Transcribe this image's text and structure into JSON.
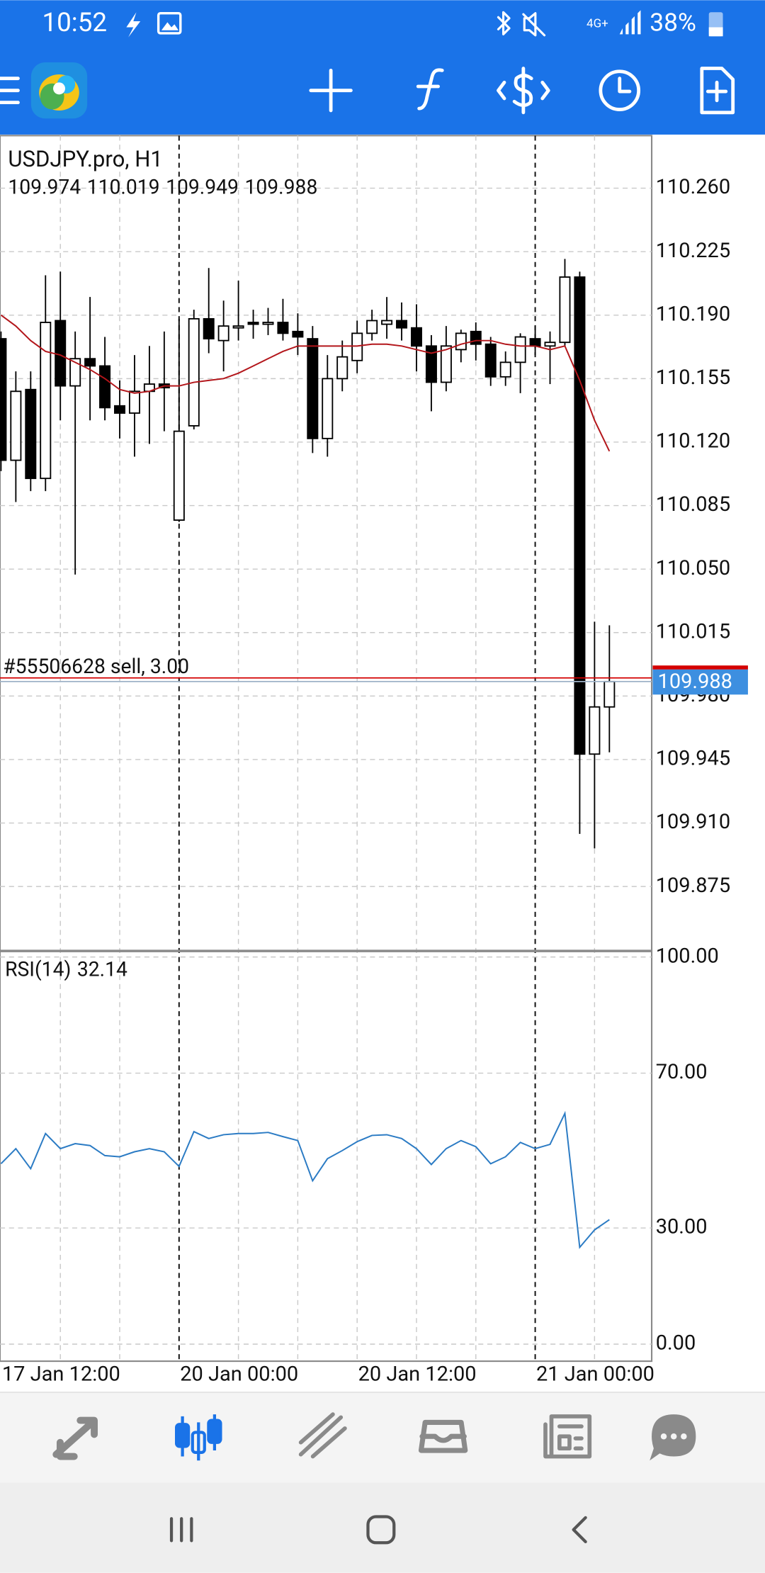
{
  "status_bar": {
    "time": "10:52",
    "network": "4G+",
    "battery": "38%"
  },
  "chart_data": [
    {
      "type": "candlestick",
      "title": "USDJPY.pro, H1",
      "categories": [
        "17 Jan 12:00",
        null,
        null,
        null,
        null,
        null,
        null,
        null,
        null,
        null,
        null,
        null,
        "20 Jan 00:00",
        null,
        null,
        null,
        null,
        null,
        null,
        null,
        null,
        null,
        null,
        null,
        "20 Jan 12:00",
        null,
        null,
        null,
        null,
        null,
        null,
        null,
        null,
        null,
        null,
        null,
        "21 Jan 00:00",
        null,
        null,
        null,
        null,
        null
      ],
      "candles": {
        "open": [
          110.177,
          110.11,
          110.149,
          110.1,
          110.187,
          110.151,
          110.166,
          110.162,
          110.14,
          110.136,
          110.148,
          110.152,
          110.077,
          110.129,
          110.188,
          110.176,
          110.183,
          110.186,
          110.185,
          110.186,
          110.181,
          110.177,
          110.122,
          110.155,
          110.165,
          110.18,
          110.185,
          110.187,
          110.183,
          110.173,
          110.153,
          110.171,
          110.181,
          110.174,
          110.156,
          110.164,
          110.177,
          110.173,
          110.175,
          110.211,
          109.948,
          109.974
        ],
        "high": [
          110.181,
          110.159,
          110.159,
          110.212,
          110.214,
          110.181,
          110.2,
          110.178,
          110.154,
          110.168,
          110.173,
          110.181,
          110.188,
          110.193,
          110.216,
          110.198,
          110.209,
          110.193,
          110.194,
          110.199,
          110.191,
          110.184,
          110.168,
          110.176,
          110.187,
          110.193,
          110.2,
          110.197,
          110.196,
          110.179,
          110.184,
          110.182,
          110.186,
          110.178,
          110.17,
          110.18,
          110.184,
          110.181,
          110.221,
          110.214,
          110.021,
          110.019
        ],
        "low": [
          110.104,
          110.087,
          110.093,
          110.093,
          110.132,
          110.047,
          110.132,
          110.132,
          110.122,
          110.112,
          110.119,
          110.126,
          110.076,
          110.127,
          110.169,
          110.159,
          110.176,
          110.177,
          110.179,
          110.176,
          110.168,
          110.114,
          110.112,
          110.148,
          110.158,
          110.176,
          110.177,
          110.176,
          110.159,
          110.137,
          110.148,
          110.164,
          110.165,
          110.151,
          110.151,
          110.147,
          110.168,
          110.152,
          110.173,
          109.904,
          109.896,
          109.949
        ],
        "close": [
          110.11,
          110.148,
          110.1,
          110.186,
          110.151,
          110.166,
          110.162,
          110.139,
          110.136,
          110.148,
          110.152,
          110.15,
          110.126,
          110.188,
          110.177,
          110.184,
          110.184,
          110.185,
          110.186,
          110.18,
          110.178,
          110.122,
          110.155,
          110.167,
          110.18,
          110.187,
          110.187,
          110.183,
          110.173,
          110.153,
          110.173,
          110.18,
          110.174,
          110.156,
          110.164,
          110.178,
          110.173,
          110.175,
          110.211,
          109.948,
          109.974,
          109.988
        ]
      },
      "overlays": [
        {
          "type": "line",
          "color": "#b3161b",
          "values": [
            110.19,
            110.184,
            110.176,
            110.17,
            110.168,
            110.164,
            110.16,
            110.155,
            110.149,
            110.147,
            110.148,
            110.151,
            110.151,
            110.153,
            110.154,
            110.155,
            110.158,
            110.162,
            110.166,
            110.17,
            110.173,
            110.173,
            110.173,
            110.173,
            110.173,
            110.174,
            110.174,
            110.173,
            110.171,
            110.169,
            110.171,
            110.174,
            110.176,
            110.176,
            110.174,
            110.173,
            110.173,
            110.171,
            110.173,
            110.154,
            110.132,
            110.115
          ]
        }
      ],
      "annotations": [
        {
          "text": "#55506628 sell, 3.00",
          "value": 109.99,
          "color": "#d40000"
        }
      ],
      "ylim": [
        109.84,
        110.289
      ],
      "yticks": [
        {
          "value": 110.26,
          "label": "110.260"
        },
        {
          "value": 110.225,
          "label": "110.225"
        },
        {
          "value": 110.19,
          "label": "110.190"
        },
        {
          "value": 110.155,
          "label": "110.155"
        },
        {
          "value": 110.12,
          "label": "110.120"
        },
        {
          "value": 110.085,
          "label": "110.085"
        },
        {
          "value": 110.05,
          "label": "110.050"
        },
        {
          "value": 110.015,
          "label": "110.015"
        },
        {
          "value": 109.98,
          "label": "109.980"
        },
        {
          "value": 109.945,
          "label": "109.945"
        },
        {
          "value": 109.91,
          "label": "109.910"
        },
        {
          "value": 109.875,
          "label": "109.875"
        }
      ],
      "grid": true
    },
    {
      "type": "line",
      "series": [
        {
          "name": "RSI(14)",
          "color": "#2b7bc4",
          "values": [
            46.6,
            50.5,
            45.3,
            54.4,
            50.5,
            51.8,
            51.3,
            48.7,
            48.4,
            49.7,
            50.5,
            49.7,
            45.9,
            54.9,
            53.1,
            54.1,
            54.4,
            54.4,
            54.7,
            53.6,
            52.6,
            42.2,
            47.9,
            50.0,
            52.3,
            53.9,
            54.1,
            53.1,
            50.5,
            46.4,
            50.5,
            52.6,
            51.0,
            46.6,
            48.4,
            52.1,
            50.5,
            51.6,
            59.6,
            25.0,
            29.5,
            32.14
          ]
        }
      ],
      "ylim": [
        0,
        100
      ],
      "yticks": [
        {
          "value": 0,
          "label": "0.00"
        },
        {
          "value": 30,
          "label": "30.00"
        },
        {
          "value": 70,
          "label": "70.00"
        },
        {
          "value": 100,
          "label": "100.00"
        }
      ],
      "grid": true
    }
  ]
}
